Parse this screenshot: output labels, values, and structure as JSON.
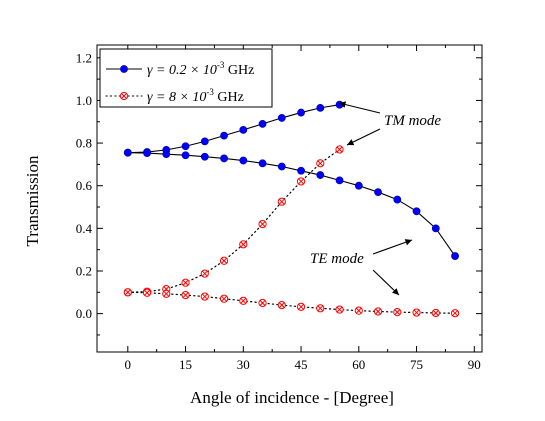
{
  "chart_data": {
    "type": "line",
    "xlabel": "Angle of incidence - [Degree]",
    "ylabel": "Transmission",
    "xlim": [
      -8,
      92
    ],
    "ylim": [
      -0.18,
      1.26
    ],
    "xticks": [
      "0",
      "15",
      "30",
      "45",
      "60",
      "75",
      "90"
    ],
    "yticks": [
      "0.0",
      "0.2",
      "0.4",
      "0.6",
      "0.8",
      "1.0",
      "1.2"
    ],
    "xtick_values": [
      0,
      15,
      30,
      45,
      60,
      75,
      90
    ],
    "ytick_values": [
      0.0,
      0.2,
      0.4,
      0.6,
      0.8,
      1.0,
      1.2
    ],
    "legend": {
      "placement": "top-left",
      "entries": [
        {
          "prefix": "γ = 0.2 × 10",
          "sup": "-3",
          "suffix": " GHz",
          "color": "#0000ff",
          "marker": "filled-circle",
          "line": "solid-black"
        },
        {
          "prefix": "γ = 8 × 10",
          "sup": "-3",
          "suffix": " GHz",
          "color": "#ff0000",
          "marker": "crossed-open-circle",
          "line": "dotted-black"
        }
      ]
    },
    "series": [
      {
        "group": "γ = 0.2 × 10^-3 GHz",
        "color": "#0000ff",
        "marker": "filled-circle",
        "line": "solid",
        "x": [
          0,
          5,
          10,
          15,
          20,
          25,
          30,
          35,
          40,
          45,
          50,
          55
        ],
        "y": [
          0.755,
          0.758,
          0.768,
          0.785,
          0.808,
          0.835,
          0.862,
          0.89,
          0.918,
          0.943,
          0.965,
          0.98
        ]
      },
      {
        "group": "γ = 0.2 × 10^-3 GHz",
        "color": "#0000ff",
        "marker": "filled-circle",
        "line": "solid",
        "x": [
          0,
          5,
          10,
          15,
          20,
          25,
          30,
          35,
          40,
          45,
          50,
          55,
          60,
          65,
          70,
          75,
          80,
          85
        ],
        "y": [
          0.755,
          0.753,
          0.748,
          0.743,
          0.736,
          0.728,
          0.718,
          0.705,
          0.69,
          0.67,
          0.65,
          0.625,
          0.6,
          0.57,
          0.535,
          0.48,
          0.4,
          0.27
        ]
      },
      {
        "group": "γ = 8 × 10^-3 GHz",
        "color": "#ff0000",
        "marker": "crossed-open-circle",
        "line": "dotted",
        "x": [
          0,
          5,
          10,
          15,
          20,
          25,
          30,
          35,
          40,
          45,
          50,
          55
        ],
        "y": [
          0.1,
          0.103,
          0.115,
          0.145,
          0.188,
          0.248,
          0.325,
          0.42,
          0.525,
          0.62,
          0.705,
          0.77
        ]
      },
      {
        "group": "γ = 8 × 10^-3 GHz",
        "color": "#ff0000",
        "marker": "crossed-open-circle",
        "line": "dotted",
        "x": [
          0,
          5,
          10,
          15,
          20,
          25,
          30,
          35,
          40,
          45,
          50,
          55,
          60,
          65,
          70,
          75,
          80,
          85
        ],
        "y": [
          0.1,
          0.098,
          0.093,
          0.087,
          0.08,
          0.07,
          0.06,
          0.05,
          0.04,
          0.032,
          0.025,
          0.019,
          0.014,
          0.01,
          0.007,
          0.005,
          0.003,
          0.002
        ]
      }
    ],
    "annotations": [
      {
        "text": "TM mode"
      },
      {
        "text": "TE mode"
      }
    ]
  }
}
